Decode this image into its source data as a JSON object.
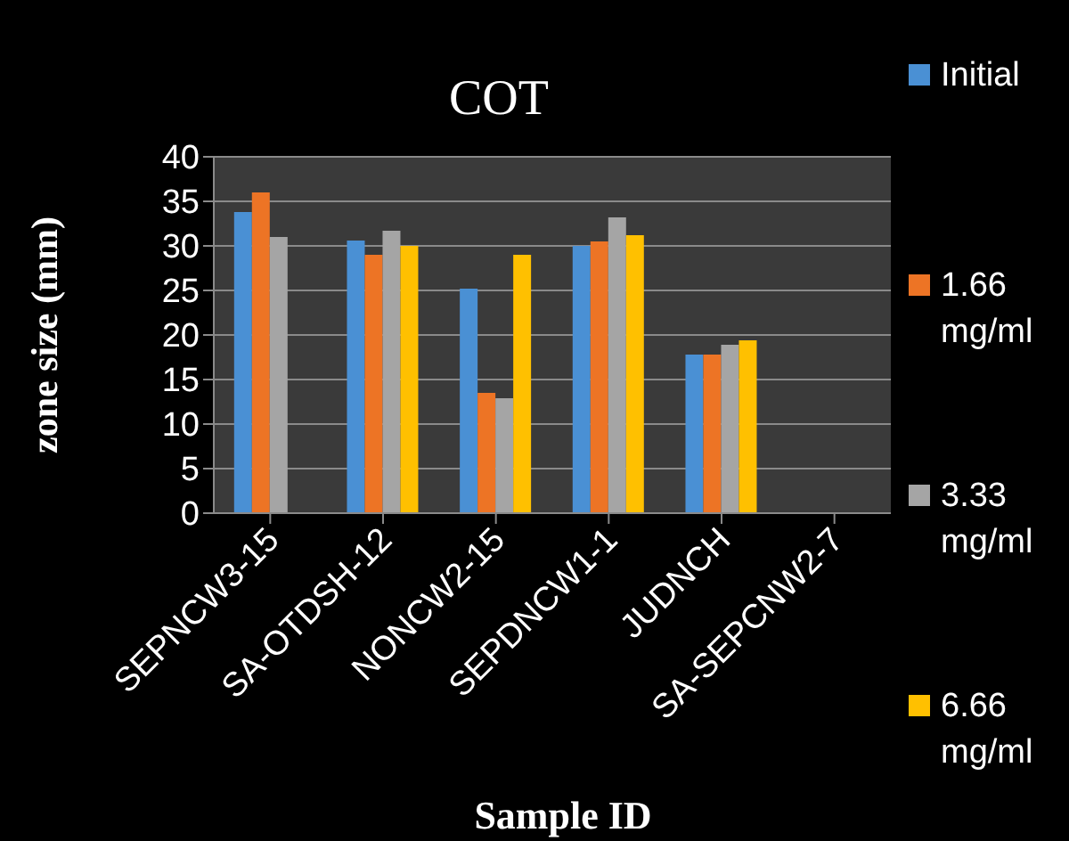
{
  "chart_data": {
    "type": "bar",
    "title": "COT",
    "xlabel": "Sample ID",
    "ylabel": "zone size (mm)",
    "categories": [
      "SEPNCW3-15",
      "SA-OTDSH-12",
      "NONCW2-15",
      "SEPDNCW1-1",
      "JUDNCH",
      "SA-SEPCNW2-7"
    ],
    "series": [
      {
        "name": "Initial",
        "color": "#4a90d4",
        "values": [
          33.8,
          30.6,
          25.2,
          30,
          17.8,
          null
        ]
      },
      {
        "name": "1.66 mg/ml",
        "color": "#ed7425",
        "values": [
          36,
          29,
          13.5,
          30.5,
          17.8,
          null
        ]
      },
      {
        "name": "3.33 mg/ml",
        "color": "#a5a5a5",
        "values": [
          31,
          31.7,
          12.9,
          33.2,
          18.9,
          null
        ]
      },
      {
        "name": "6.66 mg/ml",
        "color": "#ffc000",
        "values": [
          null,
          30,
          29,
          31.2,
          19.4,
          null
        ]
      }
    ],
    "ylim": [
      0,
      40
    ],
    "yticks": [
      0,
      5,
      10,
      15,
      20,
      25,
      30,
      35,
      40
    ],
    "grid": "y",
    "legend": "right"
  }
}
